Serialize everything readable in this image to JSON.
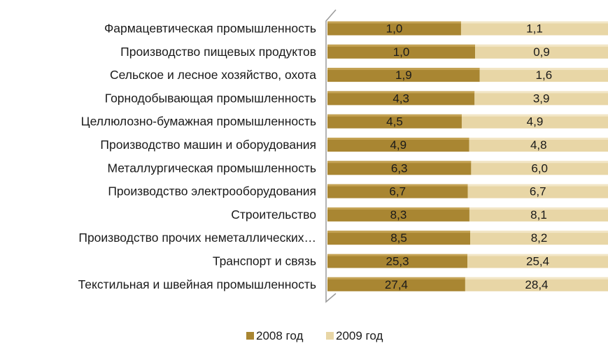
{
  "chart_data": {
    "type": "bar",
    "orientation": "horizontal",
    "stacking": "percent",
    "categories": [
      "Фармацевтическая промышленность",
      "Производство пищевых продуктов",
      "Сельское и лесное хозяйство, охота",
      "Горнодобывающая промышленность",
      "Целлюлозно-бумажная промышленность",
      "Производство машин и оборудования",
      "Металлургическая промышленность",
      "Производство электрооборудования",
      "Строительство",
      "Производство прочих неметаллических…",
      "Транспорт и связь",
      "Текстильная и швейная промышленность"
    ],
    "series": [
      {
        "name": "2008 год",
        "color": "#a98632",
        "values": [
          1.0,
          1.0,
          1.9,
          4.3,
          4.5,
          4.9,
          6.3,
          6.7,
          8.3,
          8.5,
          25.3,
          27.4
        ],
        "labels": [
          "1,0",
          "1,0",
          "1,9",
          "4,3",
          "4,5",
          "4,9",
          "6,3",
          "6,7",
          "8,3",
          "8,5",
          "25,3",
          "27,4"
        ]
      },
      {
        "name": "2009 год",
        "color": "#e8d6a6",
        "values": [
          1.1,
          0.9,
          1.6,
          3.9,
          4.9,
          4.8,
          6.0,
          6.7,
          8.1,
          8.2,
          25.4,
          28.4
        ],
        "labels": [
          "1,1",
          "0,9",
          "1,6",
          "3,9",
          "4,9",
          "4,8",
          "6,0",
          "6,7",
          "8,1",
          "8,2",
          "25,4",
          "28,4"
        ]
      }
    ],
    "legend": {
      "position": "bottom",
      "entries": [
        "2008 год",
        "2009 год"
      ]
    },
    "grid": false
  }
}
